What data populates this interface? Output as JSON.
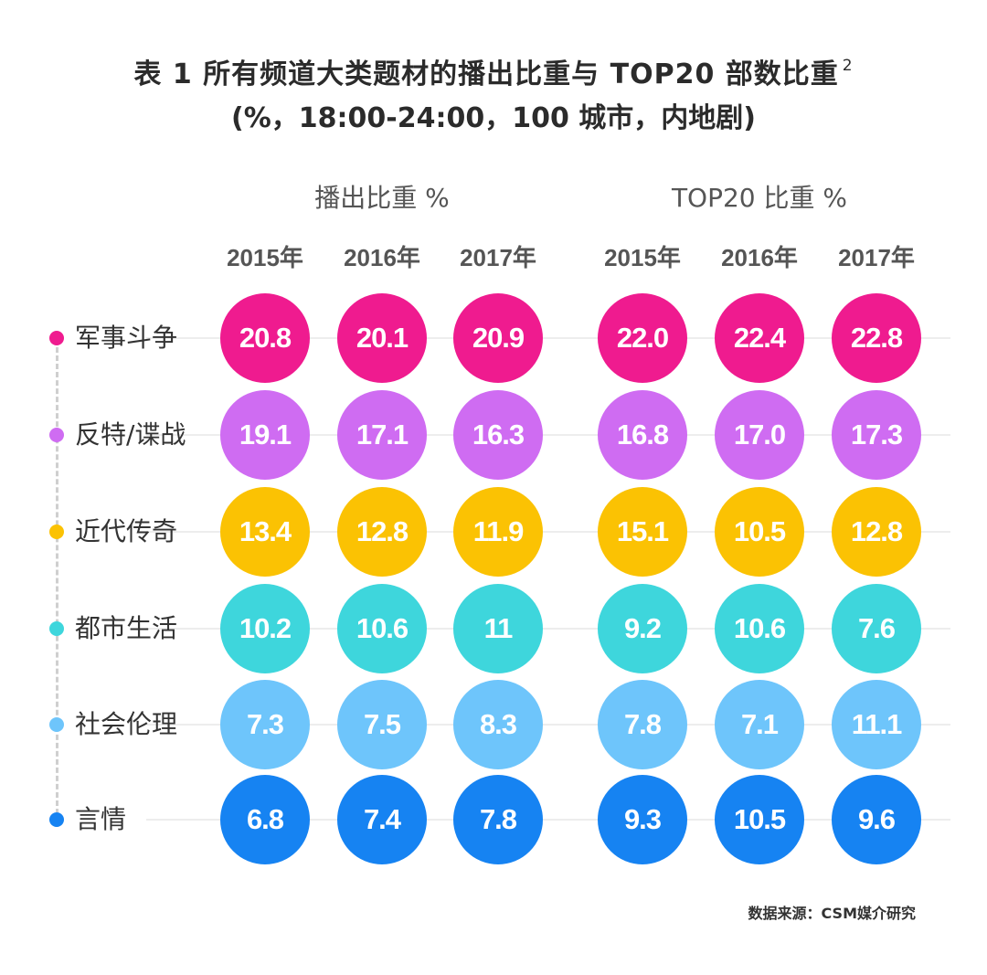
{
  "title": {
    "line1": "表 1 所有频道大类题材的播出比重与 TOP20 部数比重",
    "superscript": "2",
    "line2": "(%，18:00-24:00，100 城市，内地剧)"
  },
  "source": "数据来源：CSM媒介研究",
  "chart_data": {
    "type": "table",
    "title": "表 1 所有频道大类题材的播出比重与 TOP20 部数比重",
    "groups": [
      {
        "name": "播出比重 %",
        "years": [
          "2015年",
          "2016年",
          "2017年"
        ]
      },
      {
        "name": "TOP20 比重 %",
        "years": [
          "2015年",
          "2016年",
          "2017年"
        ]
      }
    ],
    "categories": [
      "军事斗争",
      "反特/谍战",
      "近代传奇",
      "都市生活",
      "社会伦理",
      "言情"
    ],
    "colors": [
      "#ef1b8f",
      "#cf6cf2",
      "#fbc203",
      "#3ed6dc",
      "#6ec5fb",
      "#1683f2"
    ],
    "series": [
      {
        "name": "播出比重 2015年",
        "values": [
          "20.8",
          "19.1",
          "13.4",
          "10.2",
          "7.3",
          "6.8"
        ]
      },
      {
        "name": "播出比重 2016年",
        "values": [
          "20.1",
          "17.1",
          "12.8",
          "10.6",
          "7.5",
          "7.4"
        ]
      },
      {
        "name": "播出比重 2017年",
        "values": [
          "20.9",
          "16.3",
          "11.9",
          "11",
          "8.3",
          "7.8"
        ]
      },
      {
        "name": "TOP20 比重 2015年",
        "values": [
          "22.0",
          "16.8",
          "15.1",
          "9.2",
          "7.8",
          "9.3"
        ]
      },
      {
        "name": "TOP20 比重 2016年",
        "values": [
          "22.4",
          "17.0",
          "10.5",
          "10.6",
          "7.1",
          "10.5"
        ]
      },
      {
        "name": "TOP20 比重 2017年",
        "values": [
          "22.8",
          "17.3",
          "12.8",
          "7.6",
          "11.1",
          "9.6"
        ]
      }
    ]
  }
}
